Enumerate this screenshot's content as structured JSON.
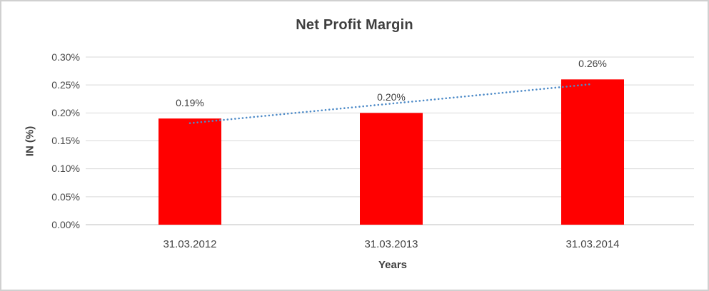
{
  "chart_data": {
    "type": "bar",
    "title": "Net Profit Margin",
    "xlabel": "Years",
    "ylabel": "IN (%)",
    "categories": [
      "31.03.2012",
      "31.03.2013",
      "31.03.2014"
    ],
    "values": [
      0.19,
      0.2,
      0.26
    ],
    "data_labels": [
      "0.19%",
      "0.20%",
      "0.26%"
    ],
    "y_ticks": [
      "0.30%",
      "0.25%",
      "0.20%",
      "0.15%",
      "0.10%",
      "0.05%",
      "0.00%"
    ],
    "ylim": [
      0,
      0.3
    ],
    "unit": "%",
    "grid": true,
    "legend": false,
    "bar_color": "#ff0000",
    "gridline_color": "#d9d9d9",
    "axis_line_color": "#bfbfbf",
    "trendline": {
      "type": "linear",
      "style": "dotted",
      "color": "#4e8bc8"
    }
  }
}
